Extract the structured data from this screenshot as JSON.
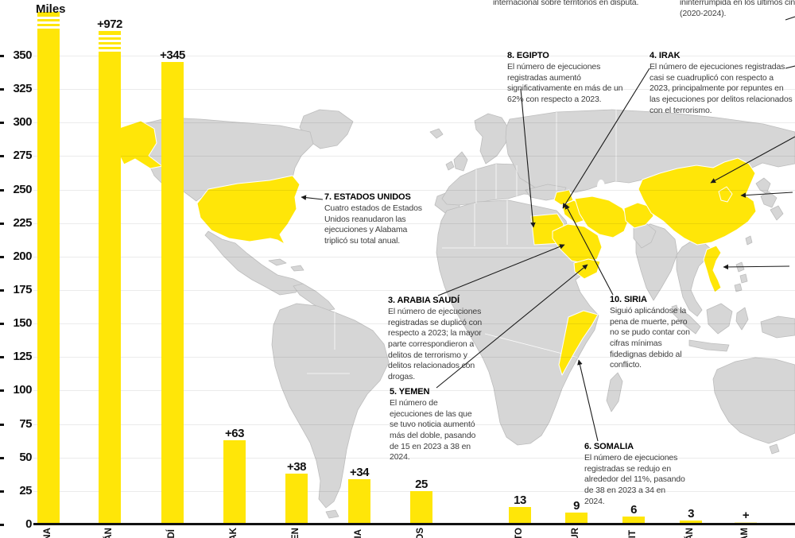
{
  "colors": {
    "highlight": "#ffe608",
    "pale": "#fbf3a6",
    "map_gray": "#d6d6d6",
    "map_border": "#ffffff",
    "leader": "#1a1a1a"
  },
  "chart_data": {
    "type": "bar",
    "unit_label": "Miles",
    "ylim": [
      0,
      350
    ],
    "grid": true,
    "yticks": [
      350,
      325,
      300,
      275,
      250,
      225,
      200,
      175,
      150,
      125,
      100,
      75,
      50,
      25,
      0
    ],
    "bars": [
      {
        "label": "",
        "fragment": "NA",
        "value": null,
        "broken": true
      },
      {
        "label": "+972",
        "fragment": "ÁN",
        "value": null,
        "broken": true
      },
      {
        "label": "+345",
        "fragment": "DÍ",
        "value": 345
      },
      {
        "label": "+63",
        "fragment": "AK",
        "value": 63
      },
      {
        "label": "+38",
        "fragment": "EN",
        "value": 38
      },
      {
        "label": "+34",
        "fragment": "IA",
        "value": 34
      },
      {
        "label": "25",
        "fragment": "OS",
        "value": 25
      },
      {
        "label": "13",
        "fragment": "TO",
        "value": 13
      },
      {
        "label": "9",
        "fragment": "UR",
        "value": 9
      },
      {
        "label": "6",
        "fragment": "IT",
        "value": 6
      },
      {
        "label": "3",
        "fragment": "ÁN",
        "value": 3
      },
      {
        "label": "+",
        "fragment": "AM",
        "value": null,
        "pale": true
      }
    ]
  },
  "annotations": [
    {
      "title": "7. ESTADOS UNIDOS",
      "body": "Cuatro estados de Estados Unidos reanudaron las ejecuciones y Alabama triplicó su total anual."
    },
    {
      "title": "3. ARABIA SAUDÍ",
      "body": "El número de ejecuciones registradas se duplicó con respecto a 2023; la mayor parte correspondieron a delitos de terrorismo y delitos relacionados con drogas."
    },
    {
      "title": "5. YEMEN",
      "body": "El número de ejecuciones de las que se tuvo noticia aumentó más del doble, pasando de 15 en 2023 a 38 en 2024."
    },
    {
      "title": "8. EGIPTO",
      "body": "El número de ejecuciones registradas aumentó significativamente en más de un 62% con respecto a 2023."
    },
    {
      "title": "4. IRAK",
      "body": "El número de ejecuciones registradas casi se cuadruplicó con respecto a 2023, principalmente por repuntes en las ejecuciones por delitos relacionados con el terrorismo."
    },
    {
      "title": "10. SIRIA",
      "body": "Siguió aplicándose la pena de muerte, pero no se pudo contar con cifras mínimas fidedignas debido al conflicto."
    },
    {
      "title": "6. SOMALIA",
      "body": "El número de ejecuciones registradas se redujo en alrededor del 11%, pasando de 38 en 2023 a 34 en 2024."
    }
  ],
  "cut_texts": {
    "top_left": "internacional sobre territorios en disputa.",
    "top_right_line1": "ininterrumpida en los últimos cinco años",
    "top_right_line2": "(2020-2024)."
  }
}
